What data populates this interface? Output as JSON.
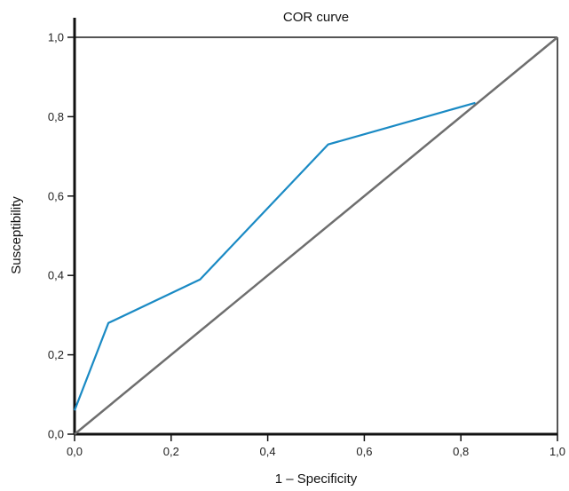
{
  "chart_data": {
    "type": "line",
    "title": "COR curve",
    "xlabel": "1 – Specificity",
    "ylabel": "Susceptibility",
    "xlim": [
      0,
      1
    ],
    "ylim": [
      0,
      1
    ],
    "x_ticks": [
      "0,0",
      "0,2",
      "0,4",
      "0,6",
      "0,8",
      "1,0"
    ],
    "y_ticks": [
      "0,0",
      "0,2",
      "0,4",
      "0,6",
      "0,8",
      "1,0"
    ],
    "grid": false,
    "series": [
      {
        "color": "#1a8ac4",
        "points": [
          {
            "x": 0.0,
            "y": 0.06
          },
          {
            "x": 0.07,
            "y": 0.28
          },
          {
            "x": 0.26,
            "y": 0.39
          },
          {
            "x": 0.525,
            "y": 0.73
          },
          {
            "x": 0.83,
            "y": 0.835
          }
        ]
      },
      {
        "color": "#6e6e6e",
        "points": [
          {
            "x": 0.0,
            "y": 0.0
          },
          {
            "x": 1.0,
            "y": 1.0
          }
        ]
      }
    ]
  }
}
